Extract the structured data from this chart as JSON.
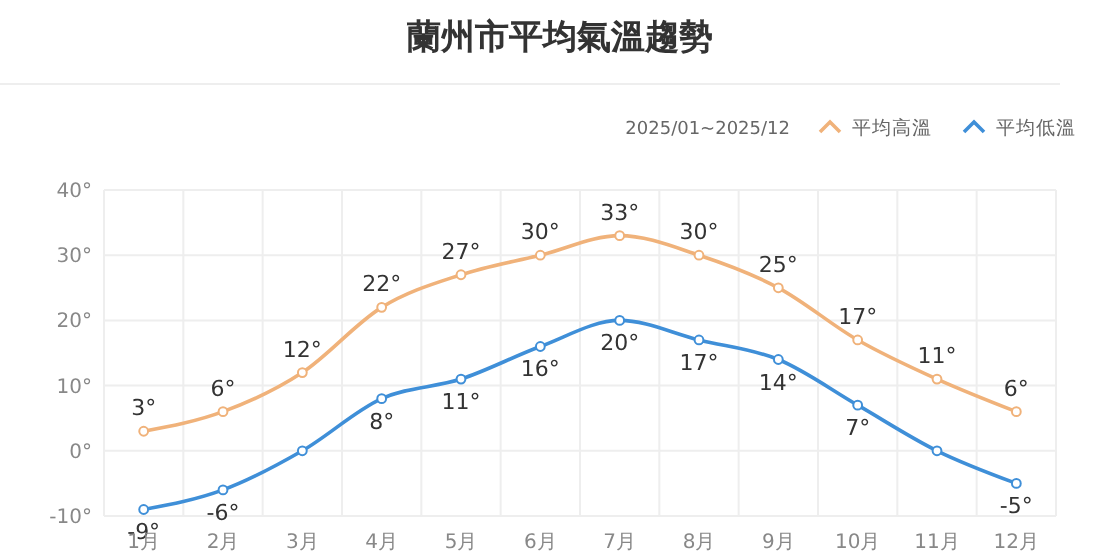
{
  "chart_data": {
    "type": "line",
    "title": "蘭州市平均氣溫趨勢",
    "subtitle": "2025/01~2025/12",
    "categories": [
      "1月",
      "2月",
      "3月",
      "4月",
      "5月",
      "6月",
      "7月",
      "8月",
      "9月",
      "10月",
      "11月",
      "12月"
    ],
    "series": [
      {
        "name": "平均高溫",
        "color": "#f0b27a",
        "values": [
          3,
          6,
          12,
          22,
          27,
          30,
          33,
          30,
          25,
          17,
          11,
          6
        ],
        "value_labels": [
          "3°",
          "6°",
          "12°",
          "22°",
          "27°",
          "30°",
          "33°",
          "30°",
          "25°",
          "17°",
          "11°",
          "6°"
        ]
      },
      {
        "name": "平均低溫",
        "color": "#3f8fd8",
        "values": [
          -9,
          -6,
          0,
          8,
          11,
          16,
          20,
          17,
          14,
          7,
          0,
          -5
        ],
        "value_labels": [
          "-9°",
          "-6°",
          null,
          "8°",
          "11°",
          "16°",
          "20°",
          "17°",
          "14°",
          "7°",
          null,
          "-5°"
        ]
      }
    ],
    "ylim": [
      -10,
      40
    ],
    "yticks": [
      {
        "value": -10,
        "label": "-10°"
      },
      {
        "value": 0,
        "label": "0°"
      },
      {
        "value": 10,
        "label": "10°"
      },
      {
        "value": 20,
        "label": "20°"
      },
      {
        "value": 30,
        "label": "30°"
      },
      {
        "value": 40,
        "label": "40°"
      }
    ],
    "grid": true,
    "legend": "top right",
    "marker": "circle",
    "line_style": "solid"
  }
}
